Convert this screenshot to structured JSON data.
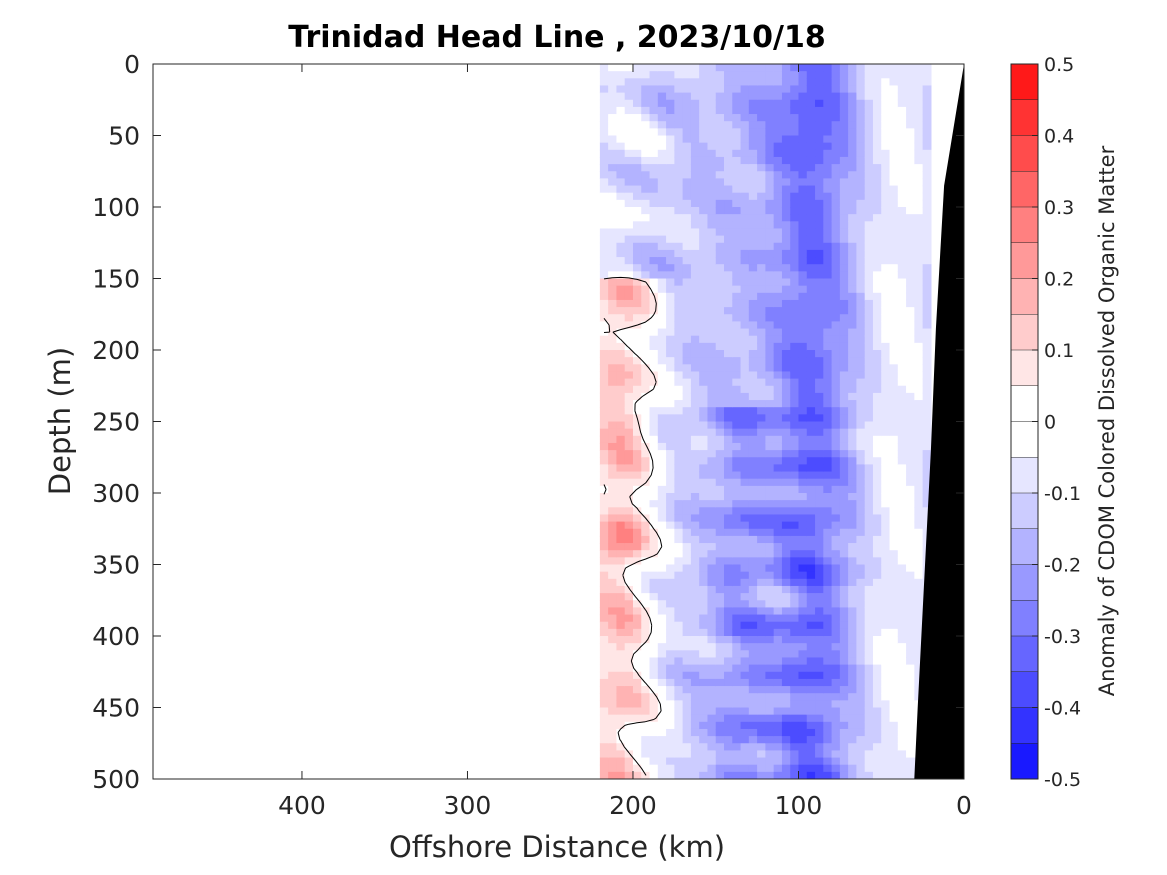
{
  "chart_data": {
    "type": "heatmap",
    "title": "Trinidad Head Line , 2023/10/18",
    "xlabel": "Offshore Distance (km)",
    "ylabel": "Depth (m)",
    "colorbar_label": "Anomaly of CDOM Colored Dissolved Organic Matter",
    "xlim": [
      490,
      0
    ],
    "ylim": [
      0,
      500
    ],
    "x_reversed": true,
    "y_reversed": true,
    "xticks": [
      400,
      300,
      200,
      100,
      0
    ],
    "yticks": [
      0,
      50,
      100,
      150,
      200,
      250,
      300,
      350,
      400,
      450,
      500
    ],
    "clim": [
      -0.5,
      0.5
    ],
    "cticks": [
      0.5,
      0.4,
      0.3,
      0.2,
      0.1,
      0,
      -0.1,
      -0.2,
      -0.3,
      -0.4,
      -0.5
    ],
    "cticks_labels": [
      "0.5",
      "0.4",
      "0.3",
      "0.2",
      "0.1",
      "0",
      "-0.1",
      "-0.2",
      "-0.3",
      "-0.4",
      "-0.5"
    ],
    "contour_levels": [
      -0.5,
      -0.45,
      -0.4,
      -0.35,
      -0.3,
      -0.25,
      -0.2,
      -0.15,
      -0.1,
      -0.05,
      0.05,
      0.1,
      0.15,
      0.2,
      0.25,
      0.3,
      0.35,
      0.4,
      0.45,
      0.5
    ],
    "data_extent_km": [
      220,
      20
    ],
    "bathymetry": [
      [
        0,
        0
      ],
      [
        12,
        85
      ],
      [
        17,
        185
      ],
      [
        20,
        270
      ],
      [
        24,
        360
      ],
      [
        28,
        450
      ],
      [
        30,
        500
      ],
      [
        0,
        500
      ]
    ],
    "grid": false,
    "colors": {
      "positive_max": "#ff0000",
      "negative_max": "#0000ff",
      "neutral": "#ffffff",
      "land": "#000000"
    }
  }
}
